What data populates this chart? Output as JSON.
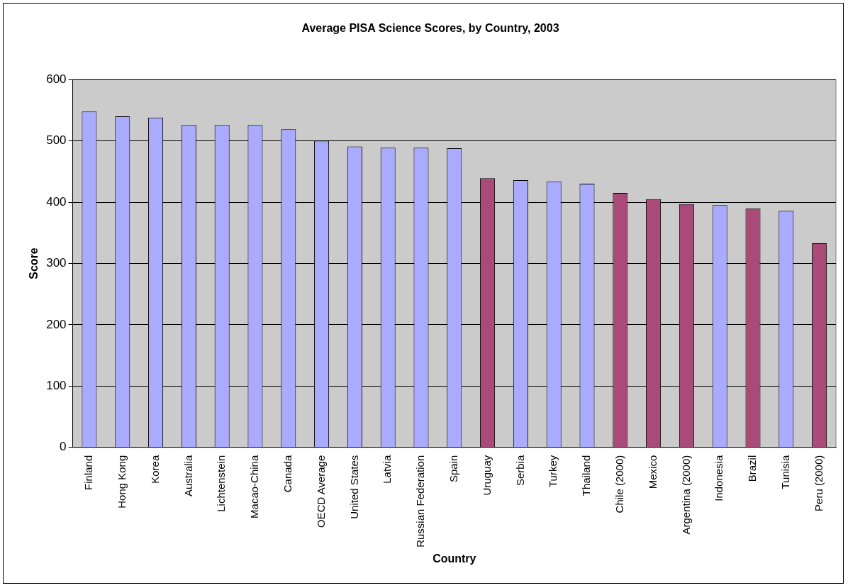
{
  "chart_data": {
    "type": "bar",
    "title": "Average PISA Science Scores, by Country, 2003",
    "xlabel": "Country",
    "ylabel": "Score",
    "categories": [
      "Finland",
      "Hong Kong",
      "Korea",
      "Australia",
      "Lichtenstein",
      "Macao-China",
      "Canada",
      "OECD Average",
      "United States",
      "Latvia",
      "Russian Federation",
      "Spain",
      "Uruguay",
      "Serbia",
      "Turkey",
      "Thailand",
      "Chile (2000)",
      "Mexico",
      "Argentina (2000)",
      "Indonesia",
      "Brazil",
      "Tunisia",
      "Peru (2000)"
    ],
    "values": [
      548,
      540,
      538,
      526,
      526,
      526,
      519,
      500,
      491,
      489,
      489,
      488,
      439,
      436,
      434,
      430,
      415,
      405,
      397,
      395,
      390,
      386,
      333
    ],
    "colors": [
      "#aaaaff",
      "#aaaaff",
      "#aaaaff",
      "#aaaaff",
      "#aaaaff",
      "#aaaaff",
      "#aaaaff",
      "#aaaaff",
      "#aaaaff",
      "#aaaaff",
      "#aaaaff",
      "#aaaaff",
      "#aa4a78",
      "#aaaaff",
      "#aaaaff",
      "#aaaaff",
      "#aa4a78",
      "#aa4a78",
      "#aa4a78",
      "#aaaaff",
      "#aa4a78",
      "#aaaaff",
      "#aa4a78"
    ],
    "ylim": [
      0,
      600
    ],
    "yticks": [
      0,
      100,
      200,
      300,
      400,
      500,
      600
    ],
    "grid": "y",
    "legend": false
  }
}
